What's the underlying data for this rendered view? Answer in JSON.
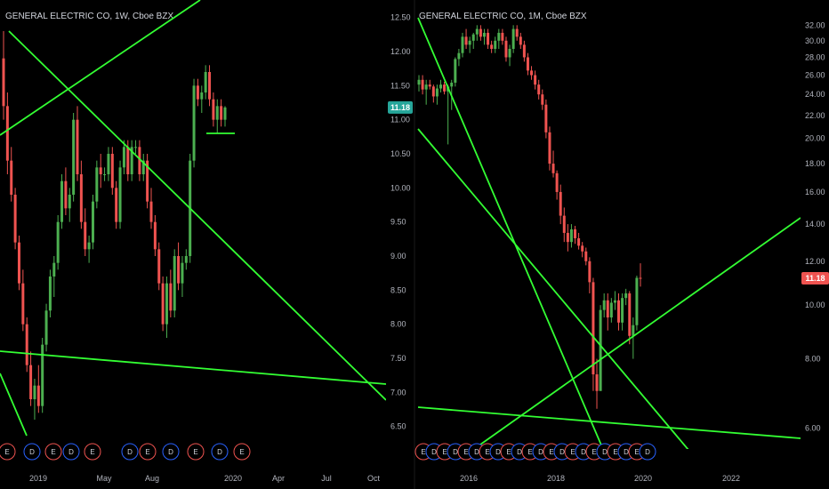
{
  "colors": {
    "background": "#000000",
    "up": "#26a69a",
    "up_fill": "#4caf50",
    "down": "#ef5350",
    "trendline": "#33ff33",
    "axis_text": "#b2b5be",
    "earnings": "#ef5350",
    "dividend": "#2962ff"
  },
  "chart_data": [
    {
      "type": "candlestick",
      "title": "GENERAL ELECTRIC CO, 1W, Cboe BZX",
      "x_ticks": [
        "2019",
        "May",
        "Aug",
        "2020",
        "Apr",
        "Jul",
        "Oct"
      ],
      "y_ticks": [
        "12.50",
        "12.00",
        "11.50",
        "11.00",
        "10.50",
        "10.00",
        "9.50",
        "9.00",
        "8.50",
        "8.00",
        "7.50",
        "7.00",
        "6.50"
      ],
      "ylim": [
        6.3,
        12.6
      ],
      "y_scale": "linear",
      "last_price_label": "11.18",
      "last_price": 11.18,
      "grid": false,
      "events": [
        "E",
        "D",
        "E",
        "D",
        "E",
        "D",
        "E",
        "D",
        "E",
        "D",
        "E"
      ],
      "ohlc_weekly": [
        [
          11.9,
          12.3,
          11.0,
          11.2
        ],
        [
          11.2,
          11.4,
          10.2,
          10.4
        ],
        [
          10.4,
          10.6,
          9.8,
          9.9
        ],
        [
          9.9,
          10.0,
          9.1,
          9.2
        ],
        [
          9.2,
          9.3,
          8.5,
          8.6
        ],
        [
          8.6,
          8.8,
          7.9,
          8.0
        ],
        [
          8.0,
          8.1,
          7.3,
          7.4
        ],
        [
          7.4,
          7.6,
          6.8,
          6.9
        ],
        [
          6.9,
          7.2,
          6.6,
          7.1
        ],
        [
          7.1,
          7.4,
          6.7,
          6.8
        ],
        [
          6.8,
          7.8,
          6.7,
          7.7
        ],
        [
          7.7,
          8.3,
          7.6,
          8.2
        ],
        [
          8.2,
          8.8,
          8.1,
          8.7
        ],
        [
          8.7,
          9.0,
          8.4,
          8.9
        ],
        [
          8.9,
          9.6,
          8.8,
          9.5
        ],
        [
          9.5,
          10.2,
          9.4,
          10.1
        ],
        [
          10.1,
          10.3,
          9.6,
          9.7
        ],
        [
          9.7,
          10.0,
          9.5,
          9.9
        ],
        [
          9.9,
          11.1,
          9.8,
          11.0
        ],
        [
          11.0,
          11.2,
          10.1,
          10.2
        ],
        [
          10.2,
          10.4,
          9.4,
          9.5
        ],
        [
          9.5,
          9.7,
          9.0,
          9.1
        ],
        [
          9.1,
          9.3,
          8.9,
          9.2
        ],
        [
          9.2,
          9.9,
          9.1,
          9.8
        ],
        [
          9.8,
          10.4,
          9.7,
          10.3
        ],
        [
          10.3,
          10.5,
          10.0,
          10.2
        ],
        [
          10.2,
          10.3,
          10.1,
          10.2
        ],
        [
          10.2,
          10.6,
          10.1,
          10.5
        ],
        [
          10.5,
          10.6,
          9.9,
          10.0
        ],
        [
          10.0,
          10.1,
          9.4,
          9.5
        ],
        [
          9.5,
          10.4,
          9.4,
          10.3
        ],
        [
          10.3,
          10.7,
          10.2,
          10.6
        ],
        [
          10.6,
          10.7,
          10.1,
          10.2
        ],
        [
          10.2,
          10.7,
          10.1,
          10.6
        ],
        [
          10.6,
          10.7,
          10.5,
          10.6
        ],
        [
          10.6,
          10.7,
          10.1,
          10.2
        ],
        [
          10.2,
          10.5,
          10.1,
          10.4
        ],
        [
          10.4,
          10.5,
          9.7,
          9.8
        ],
        [
          9.8,
          10.0,
          9.4,
          9.5
        ],
        [
          9.5,
          9.6,
          9.0,
          9.1
        ],
        [
          9.1,
          9.2,
          8.5,
          8.6
        ],
        [
          8.6,
          8.7,
          7.9,
          8.0
        ],
        [
          8.0,
          8.7,
          7.8,
          8.6
        ],
        [
          8.6,
          8.8,
          8.1,
          8.2
        ],
        [
          8.2,
          9.1,
          8.1,
          9.0
        ],
        [
          9.0,
          9.2,
          8.5,
          8.6
        ],
        [
          8.6,
          9.0,
          8.4,
          8.9
        ],
        [
          8.9,
          9.1,
          8.8,
          9.0
        ],
        [
          9.0,
          10.5,
          8.9,
          10.4
        ],
        [
          10.4,
          11.6,
          10.3,
          11.5
        ],
        [
          11.5,
          11.6,
          11.2,
          11.3
        ],
        [
          11.3,
          11.5,
          11.1,
          11.4
        ],
        [
          11.4,
          11.8,
          11.3,
          11.7
        ],
        [
          11.7,
          11.8,
          11.2,
          11.3
        ],
        [
          11.3,
          11.4,
          10.9,
          11.0
        ],
        [
          11.0,
          11.3,
          10.8,
          11.2
        ],
        [
          11.2,
          11.3,
          10.9,
          11.0
        ],
        [
          11.0,
          11.2,
          10.9,
          11.18
        ]
      ]
    },
    {
      "type": "candlestick",
      "title": "GENERAL ELECTRIC CO, 1M, Cboe BZX",
      "x_ticks": [
        "2016",
        "2018",
        "2020",
        "2022"
      ],
      "y_ticks": [
        "32.00",
        "30.00",
        "28.00",
        "26.00",
        "24.00",
        "22.00",
        "20.00",
        "18.00",
        "16.00",
        "14.00",
        "12.00",
        "10.00",
        "8.00",
        "6.00"
      ],
      "ylim": [
        5.5,
        33
      ],
      "y_scale": "log",
      "last_price_label": "11.18",
      "last_price": 11.18,
      "grid": false,
      "events": [
        "E",
        "D",
        "E",
        "D",
        "E",
        "D",
        "E",
        "D",
        "E",
        "D",
        "E",
        "D",
        "E",
        "D",
        "E",
        "D",
        "E",
        "D",
        "E",
        "D",
        "E",
        "D",
        "E",
        "D",
        "E",
        "D",
        "E",
        "D",
        "E",
        "D",
        "E",
        "D",
        "E",
        "D",
        "E",
        "D",
        "E",
        "D",
        "E",
        "D",
        "E",
        "D",
        "E",
        "D",
        "E",
        "D",
        "E",
        "D",
        "E",
        "D",
        "E",
        "D",
        "E",
        "D",
        "E",
        "D",
        "E",
        "D",
        "E",
        "D",
        "E",
        "E"
      ],
      "ohlc_monthly": [
        [
          25.0,
          26.0,
          24.3,
          25.5
        ],
        [
          25.5,
          26.0,
          24.0,
          24.5
        ],
        [
          24.5,
          25.5,
          23.0,
          25.0
        ],
        [
          25.0,
          25.5,
          24.5,
          24.8
        ],
        [
          24.8,
          25.0,
          23.2,
          23.8
        ],
        [
          23.8,
          25.0,
          23.0,
          24.6
        ],
        [
          24.6,
          25.5,
          24.2,
          25.0
        ],
        [
          25.0,
          25.3,
          24.0,
          24.3
        ],
        [
          24.3,
          25.0,
          19.5,
          24.8
        ],
        [
          24.8,
          25.5,
          22.5,
          25.2
        ],
        [
          25.2,
          28.0,
          24.8,
          27.8
        ],
        [
          27.8,
          29.0,
          27.0,
          28.5
        ],
        [
          28.5,
          31.0,
          28.0,
          30.5
        ],
        [
          30.5,
          31.5,
          29.0,
          29.5
        ],
        [
          29.5,
          30.5,
          28.5,
          30.0
        ],
        [
          30.0,
          31.0,
          29.0,
          30.8
        ],
        [
          30.8,
          32.0,
          30.0,
          31.5
        ],
        [
          31.5,
          32.0,
          30.0,
          30.5
        ],
        [
          30.5,
          31.5,
          29.5,
          31.0
        ],
        [
          31.0,
          31.5,
          29.0,
          29.5
        ],
        [
          29.5,
          30.0,
          28.5,
          29.0
        ],
        [
          29.0,
          30.5,
          28.5,
          30.0
        ],
        [
          30.0,
          31.5,
          29.0,
          31.0
        ],
        [
          31.0,
          31.5,
          29.5,
          30.0
        ],
        [
          30.0,
          30.5,
          27.5,
          28.0
        ],
        [
          28.0,
          29.5,
          27.0,
          29.0
        ],
        [
          29.0,
          32.0,
          28.5,
          31.5
        ],
        [
          31.5,
          32.0,
          30.0,
          30.5
        ],
        [
          30.5,
          31.0,
          29.0,
          29.5
        ],
        [
          29.5,
          30.0,
          27.5,
          28.0
        ],
        [
          28.0,
          28.5,
          26.0,
          26.5
        ],
        [
          26.5,
          27.0,
          25.5,
          26.0
        ],
        [
          26.0,
          26.5,
          24.5,
          25.0
        ],
        [
          25.0,
          25.5,
          23.5,
          24.0
        ],
        [
          24.0,
          24.5,
          22.5,
          23.0
        ],
        [
          23.0,
          23.5,
          20.0,
          20.5
        ],
        [
          20.5,
          21.0,
          17.5,
          18.0
        ],
        [
          18.0,
          19.0,
          17.0,
          17.3
        ],
        [
          17.3,
          17.5,
          15.5,
          16.0
        ],
        [
          16.0,
          16.5,
          14.0,
          14.5
        ],
        [
          14.5,
          15.0,
          13.0,
          13.5
        ],
        [
          13.5,
          14.0,
          12.5,
          13.0
        ],
        [
          13.0,
          14.0,
          12.7,
          13.7
        ],
        [
          13.7,
          13.9,
          12.9,
          13.2
        ],
        [
          13.2,
          13.5,
          12.6,
          12.8
        ],
        [
          12.8,
          13.0,
          12.2,
          12.5
        ],
        [
          12.5,
          12.7,
          11.8,
          12.0
        ],
        [
          12.0,
          12.2,
          10.5,
          11.0
        ],
        [
          11.0,
          11.2,
          7.0,
          7.5
        ],
        [
          7.5,
          8.0,
          6.5,
          7.0
        ],
        [
          7.0,
          10.0,
          7.0,
          9.8
        ],
        [
          9.8,
          10.5,
          9.5,
          10.2
        ],
        [
          10.2,
          10.5,
          9.0,
          9.5
        ],
        [
          9.5,
          10.3,
          9.3,
          10.1
        ],
        [
          10.1,
          10.6,
          9.8,
          10.2
        ],
        [
          10.2,
          10.5,
          9.0,
          9.3
        ],
        [
          9.3,
          10.5,
          9.0,
          10.3
        ],
        [
          10.3,
          10.7,
          10.0,
          10.5
        ],
        [
          10.5,
          10.6,
          8.5,
          8.8
        ],
        [
          8.8,
          9.5,
          8.0,
          9.2
        ],
        [
          9.2,
          11.3,
          9.0,
          11.2
        ],
        [
          11.2,
          11.9,
          10.8,
          11.18
        ]
      ]
    }
  ]
}
